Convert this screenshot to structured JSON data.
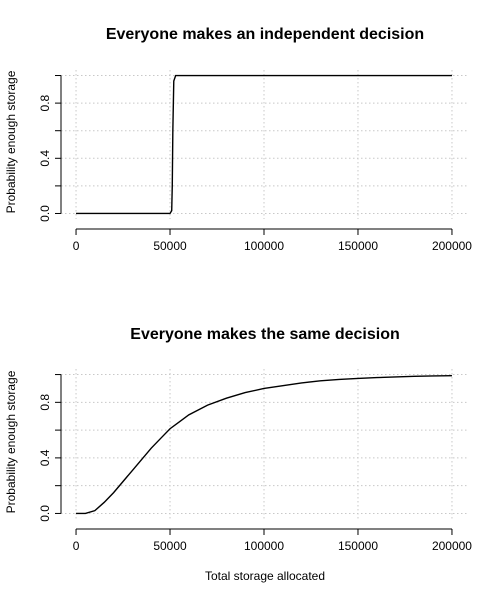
{
  "chart_data": [
    {
      "type": "line",
      "title": "Everyone makes an independent decision",
      "xlabel": "",
      "ylabel": "Probability enough storage",
      "xlim": [
        0,
        200000
      ],
      "ylim": [
        0,
        1
      ],
      "x_ticks": [
        0,
        50000,
        100000,
        150000,
        200000
      ],
      "x_tick_labels": [
        "0",
        "50000",
        "100000",
        "150000",
        "200000"
      ],
      "y_ticks": [
        0,
        0.4,
        0.8
      ],
      "y_tick_labels": [
        "0.0",
        "0.4",
        "0.8"
      ],
      "grid": true,
      "series": [
        {
          "x": [
            0,
            50000,
            50900,
            51200,
            51500,
            52000,
            53000,
            60000,
            100000,
            150000,
            200000
          ],
          "y": [
            0,
            0,
            0.02,
            0.2,
            0.6,
            0.96,
            1,
            1,
            1,
            1,
            1
          ]
        }
      ]
    },
    {
      "type": "line",
      "title": "Everyone makes the same decision",
      "xlabel": "Total storage allocated",
      "ylabel": "Probability enough storage",
      "xlim": [
        0,
        200000
      ],
      "ylim": [
        0,
        1
      ],
      "x_ticks": [
        0,
        50000,
        100000,
        150000,
        200000
      ],
      "x_tick_labels": [
        "0",
        "50000",
        "100000",
        "150000",
        "200000"
      ],
      "y_ticks": [
        0,
        0.4,
        0.8
      ],
      "y_tick_labels": [
        "0.0",
        "0.4",
        "0.8"
      ],
      "grid": true,
      "series": [
        {
          "x": [
            0,
            5000,
            10000,
            15000,
            20000,
            25000,
            30000,
            35000,
            40000,
            45000,
            50000,
            55000,
            60000,
            70000,
            80000,
            90000,
            100000,
            110000,
            120000,
            130000,
            140000,
            150000,
            160000,
            170000,
            180000,
            190000,
            200000
          ],
          "y": [
            0,
            0,
            0.02,
            0.08,
            0.15,
            0.23,
            0.31,
            0.39,
            0.47,
            0.54,
            0.61,
            0.66,
            0.71,
            0.78,
            0.83,
            0.87,
            0.9,
            0.92,
            0.94,
            0.955,
            0.965,
            0.972,
            0.978,
            0.983,
            0.987,
            0.99,
            0.992
          ]
        }
      ]
    }
  ]
}
